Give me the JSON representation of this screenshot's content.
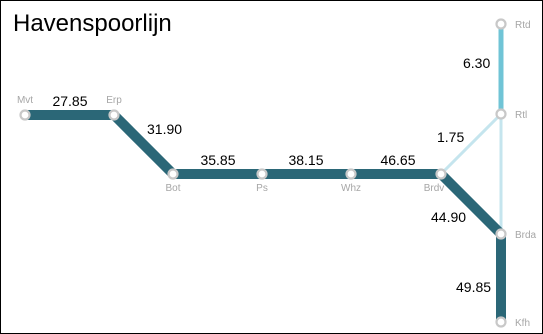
{
  "title": "Havenspoorlijn",
  "colors": {
    "main_line": "#2b6777",
    "branch_line": "#70c4d6",
    "link_line": "#c5e5ee",
    "station_fill": "#ffffff",
    "station_stroke": "#c8c8c8",
    "station_label": "#a6a6a6",
    "segment_label": "#000000"
  },
  "stations": [
    {
      "id": "mvt",
      "label": "Mvt"
    },
    {
      "id": "erp",
      "label": "Erp"
    },
    {
      "id": "bot",
      "label": "Bot"
    },
    {
      "id": "ps",
      "label": "Ps"
    },
    {
      "id": "whz",
      "label": "Whz"
    },
    {
      "id": "brdv",
      "label": "Brdv"
    },
    {
      "id": "brda",
      "label": "Brda"
    },
    {
      "id": "kfh",
      "label": "Kfh"
    },
    {
      "id": "rtl",
      "label": "Rtl"
    },
    {
      "id": "rtd",
      "label": "Rtd"
    }
  ],
  "segments": [
    {
      "from": "mvt",
      "to": "erp",
      "label": "27.85",
      "style": "main"
    },
    {
      "from": "erp",
      "to": "bot",
      "label": "31.90",
      "style": "main"
    },
    {
      "from": "bot",
      "to": "ps",
      "label": "35.85",
      "style": "main"
    },
    {
      "from": "ps",
      "to": "whz",
      "label": "38.15",
      "style": "main"
    },
    {
      "from": "whz",
      "to": "brdv",
      "label": "46.65",
      "style": "main"
    },
    {
      "from": "brdv",
      "to": "brda",
      "label": "44.90",
      "style": "main"
    },
    {
      "from": "brda",
      "to": "kfh",
      "label": "49.85",
      "style": "main"
    },
    {
      "from": "brdv",
      "to": "rtl",
      "label": "1.75",
      "style": "link"
    },
    {
      "from": "brda",
      "to": "rtl",
      "label": "",
      "style": "link"
    },
    {
      "from": "rtl",
      "to": "rtd",
      "label": "6.30",
      "style": "branch"
    }
  ]
}
